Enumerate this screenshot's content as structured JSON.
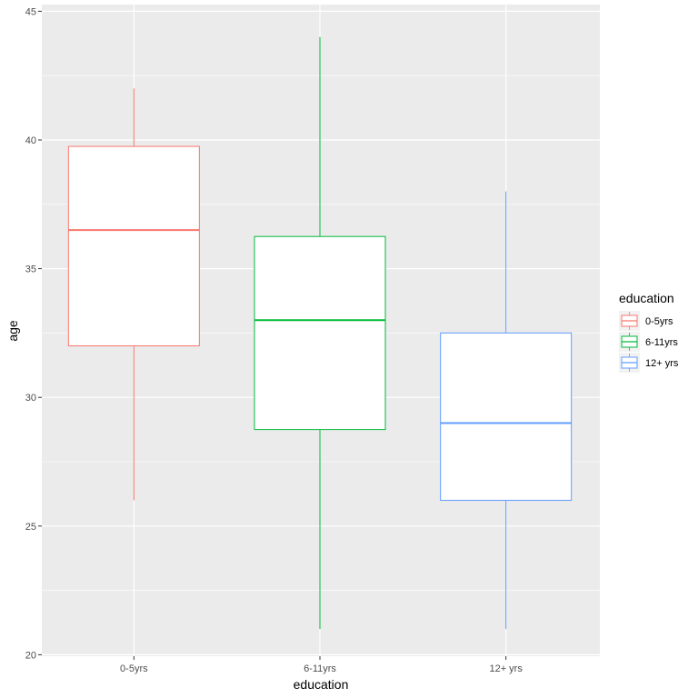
{
  "chart_data": {
    "type": "boxplot",
    "title": "",
    "xlabel": "education",
    "ylabel": "age",
    "ylim": [
      20,
      45
    ],
    "yticks": [
      20,
      25,
      30,
      35,
      40,
      45
    ],
    "categories": [
      "0-5yrs",
      "6-11yrs",
      "12+ yrs"
    ],
    "series": [
      {
        "name": "0-5yrs",
        "color": "#F8766D",
        "min": 26,
        "q1": 32,
        "median": 36.5,
        "q3": 39.75,
        "max": 42
      },
      {
        "name": "6-11yrs",
        "color": "#00BA38",
        "min": 21,
        "q1": 28.75,
        "median": 33,
        "q3": 36.25,
        "max": 44
      },
      {
        "name": "12+ yrs",
        "color": "#619CFF",
        "min": 21,
        "q1": 26,
        "median": 29,
        "q3": 32.5,
        "max": 38
      }
    ],
    "grid": true,
    "legend": {
      "title": "education",
      "position": "right",
      "entries": [
        "0-5yrs",
        "6-11yrs",
        "12+ yrs"
      ]
    }
  },
  "axes": {
    "x_title": "education",
    "y_title": "age"
  },
  "colors": {
    "panel_background": "#EBEBEB",
    "grid_major": "#FFFFFF",
    "box_fill": "#FFFFFF"
  }
}
